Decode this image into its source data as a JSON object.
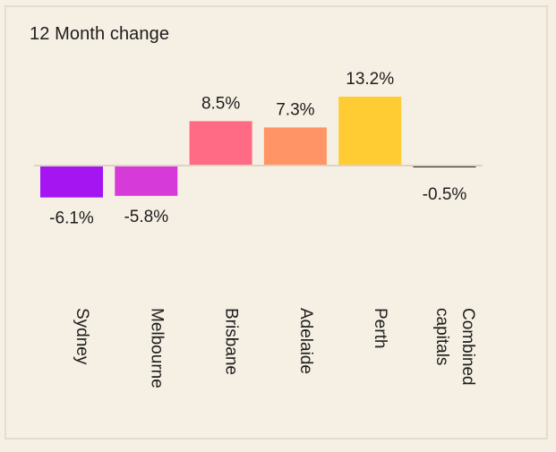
{
  "chart_data": {
    "type": "bar",
    "title": "12 Month change",
    "categories": [
      [
        "Sydney"
      ],
      [
        "Melbourne"
      ],
      [
        "Brisbane"
      ],
      [
        "Adelaide"
      ],
      [
        "Perth"
      ],
      [
        "Combined",
        "capitals"
      ]
    ],
    "values": [
      -6.1,
      -5.8,
      8.5,
      7.3,
      13.2,
      -0.5
    ],
    "value_labels": [
      "-6.1%",
      "-5.8%",
      "8.5%",
      "7.3%",
      "13.2%",
      "-0.5%"
    ],
    "colors": [
      "#a515f2",
      "#d63bd9",
      "#ff6b85",
      "#ff9466",
      "#ffcc33",
      "#2a1f1a"
    ],
    "baseline_color": "#dcd3c5",
    "grid": false,
    "legend": "none"
  }
}
